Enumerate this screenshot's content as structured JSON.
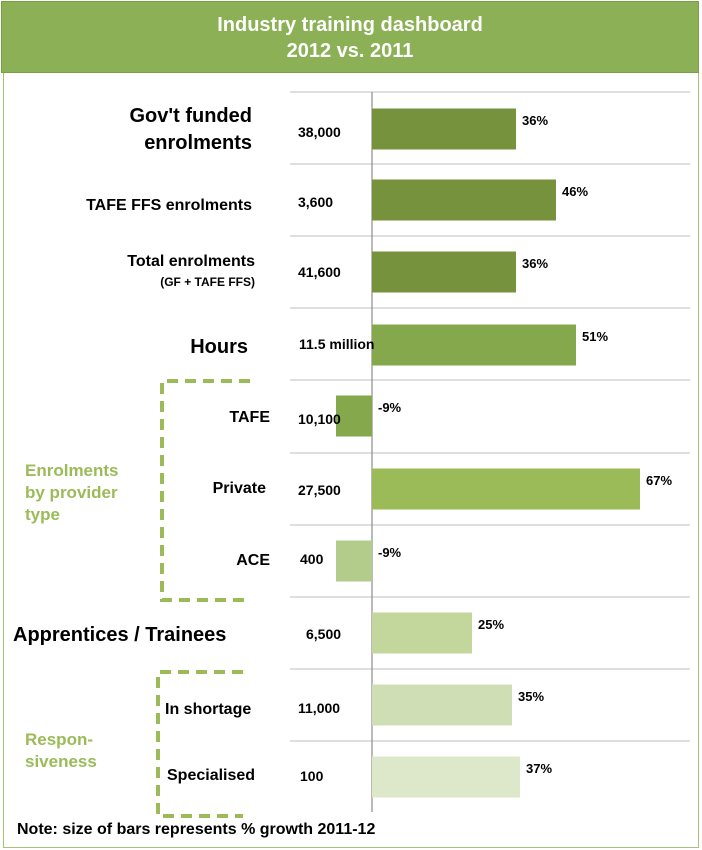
{
  "header": {
    "title_line1": "Industry training dashboard",
    "title_line2": "2012 vs. 2011"
  },
  "rows": [
    {
      "label": "Gov't funded enrolments",
      "value": "38,000",
      "pct": "36%"
    },
    {
      "label": "TAFE FFS enrolments",
      "value": "3,600",
      "pct": "46%"
    },
    {
      "label": "Total enrolments",
      "sublabel": "(GF + TAFE FFS)",
      "value": "41,600",
      "pct": "36%"
    },
    {
      "label": "Hours",
      "value": "11.5 million",
      "pct": "51%"
    },
    {
      "label": "TAFE",
      "value": "10,100",
      "pct": "-9%"
    },
    {
      "label": "Private",
      "value": "27,500",
      "pct": "67%"
    },
    {
      "label": "ACE",
      "value": "400",
      "pct": "-9%"
    },
    {
      "label": "Apprentices / Trainees",
      "value": "6,500",
      "pct": "25%"
    },
    {
      "label": "In shortage",
      "value": "11,000",
      "pct": "35%"
    },
    {
      "label": "Specialised",
      "value": "100",
      "pct": "37%"
    }
  ],
  "groups": {
    "provider": "Enrolments by provider type",
    "responsiveness": "Respon- siveness"
  },
  "note": "Note: size of bars represents % growth 2011-12",
  "chart_data": {
    "type": "bar",
    "orientation": "horizontal",
    "title": "Industry training dashboard 2012 vs. 2011",
    "categories": [
      "Gov't funded enrolments",
      "TAFE FFS enrolments",
      "Total enrolments (GF + TAFE FFS)",
      "Hours",
      "TAFE",
      "Private",
      "ACE",
      "Apprentices / Trainees",
      "In shortage",
      "Specialised"
    ],
    "values": [
      36,
      46,
      36,
      51,
      -9,
      67,
      -9,
      25,
      35,
      37
    ],
    "unit": "% growth 2011-12",
    "colors": [
      "#76923c",
      "#76923c",
      "#76923c",
      "#86a84c",
      "#86a84c",
      "#9bbb59",
      "#b3cc8c",
      "#c3d69b",
      "#d0deb5",
      "#dde8ca"
    ]
  }
}
